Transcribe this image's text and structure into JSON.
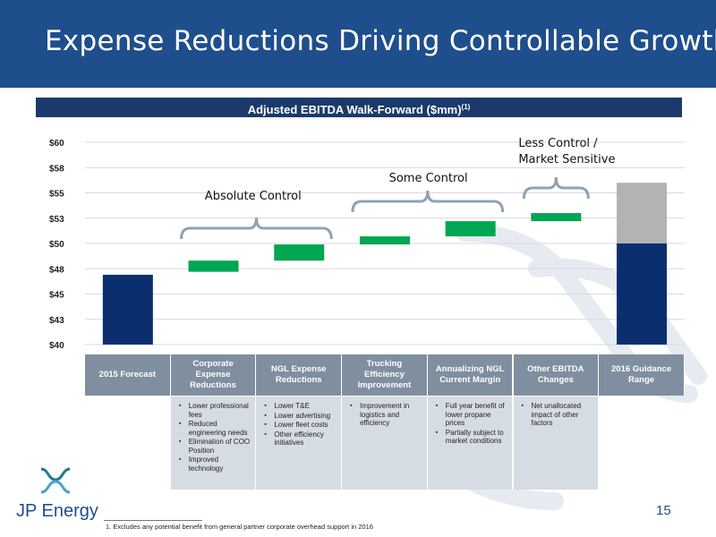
{
  "slide": {
    "title": "Expense Reductions Driving Controllable Growth",
    "subtitle": "Adjusted EBITDA Walk-Forward ($mm)",
    "subtitle_sup": "(1)",
    "page_number": "15",
    "footnote": "1.   Excludes any potential benefit from general partner corporate overhead support in 2016",
    "logo_text": "JP Energy"
  },
  "colors": {
    "header": "#1f4e8c",
    "subtitle_bar": "#1b3a6b",
    "bar_navy": "#0b2f6e",
    "bar_green": "#00a651",
    "bar_gray": "#b3b3b3",
    "bracket": "#8ea3b8"
  },
  "chart_data": {
    "type": "bar",
    "subtype": "waterfall",
    "title": "Adjusted EBITDA Walk-Forward ($mm)",
    "ylim": [
      40,
      60
    ],
    "ytick_values": [
      40,
      42.5,
      45,
      47.5,
      50,
      52.5,
      55,
      57.5,
      60
    ],
    "ytick_labels": [
      "$40",
      "$43",
      "$45",
      "$48",
      "$50",
      "$53",
      "$55",
      "$58",
      "$60"
    ],
    "categories": [
      "2015 Forecast",
      "Corporate Expense Reductions",
      "NGL Expense Reductions",
      "Trucking Efficiency Improvement",
      "Annualizing NGL Current Margin",
      "Other EBITDA Changes",
      "2016 Guidance Range"
    ],
    "bars": [
      {
        "start": 40,
        "end": 46.9,
        "color": "navy"
      },
      {
        "start": 47.2,
        "end": 48.3,
        "color": "green"
      },
      {
        "start": 48.3,
        "end": 49.9,
        "color": "green"
      },
      {
        "start": 49.9,
        "end": 50.7,
        "color": "green"
      },
      {
        "start": 50.7,
        "end": 52.2,
        "color": "green"
      },
      {
        "start": 52.2,
        "end": 53.0,
        "color": "green"
      },
      {
        "start": 40,
        "end": 50,
        "color": "navy"
      },
      {
        "start": 50,
        "end": 56.0,
        "color": "gray"
      }
    ],
    "bar_categories": [
      0,
      1,
      2,
      3,
      4,
      5,
      6,
      6
    ],
    "annotations": [
      {
        "text": "Absolute Control",
        "from": 1,
        "to": 2
      },
      {
        "text": "Some Control",
        "from": 3,
        "to": 4
      },
      {
        "text": "Less Control /\nMarket Sensitive",
        "from": 5,
        "to": 5
      }
    ],
    "grid": true
  },
  "table_notes": [
    [],
    [
      "Lower professional fees",
      "Reduced engineering needs",
      "Elimination of COO Position",
      "Improved technology"
    ],
    [
      "Lower T&E",
      "Lower advertising",
      "Lower fleet costs",
      "Other efficiency initiatives"
    ],
    [
      "Improvement in logistics and efficiency"
    ],
    [
      "Full year benefit of lower propane prices",
      "Partially subject to market conditions"
    ],
    [
      "Net unallocated impact of other factors"
    ],
    []
  ]
}
